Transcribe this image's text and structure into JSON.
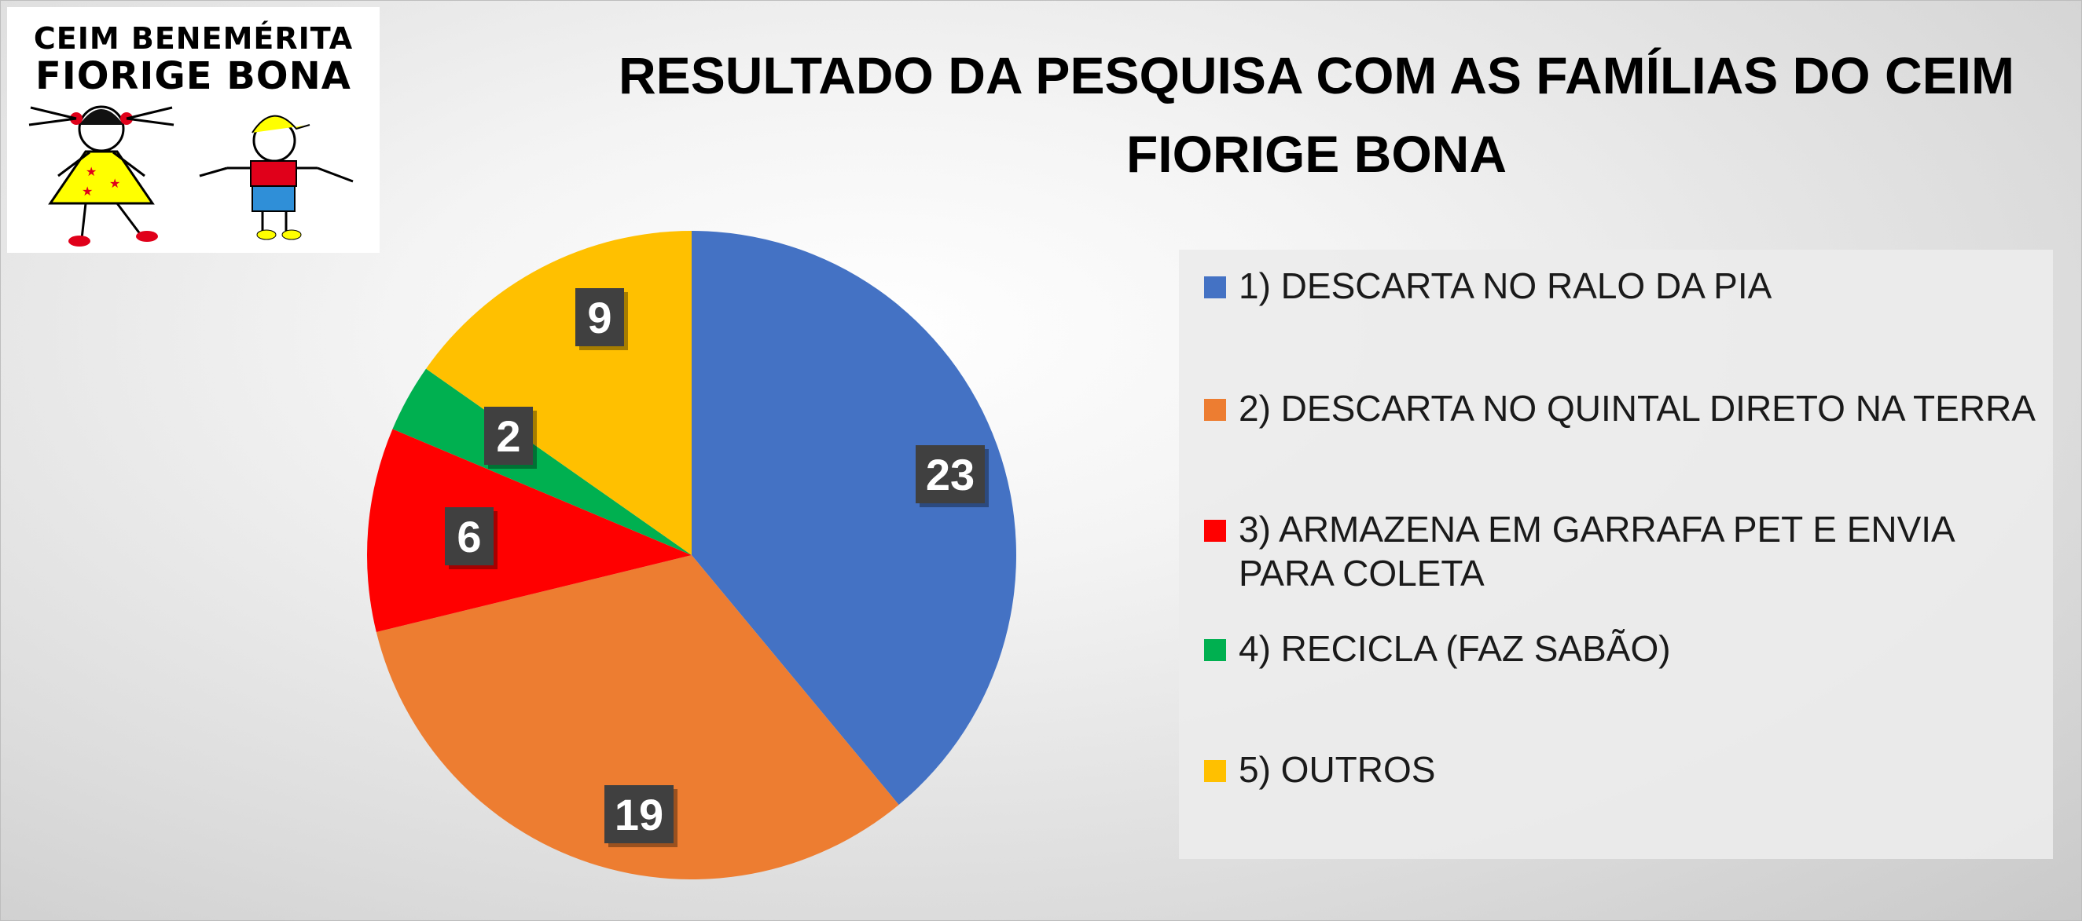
{
  "logo": {
    "line1": "CEIM BENEMÉRITA",
    "line2": "FIORIGE BONA"
  },
  "chart_data": {
    "type": "pie",
    "title_lines": [
      "RESULTADO DA PESQUISA COM AS FAMÍLIAS DO CEIM",
      "FIORIGE BONA"
    ],
    "categories": [
      "1) DESCARTA NO RALO DA PIA",
      "2) DESCARTA NO QUINTAL DIRETO NA TERRA",
      "3) ARMAZENA EM GARRAFA PET E ENVIA PARA COLETA",
      "4) RECICLA (FAZ SABÃO)",
      "5) OUTROS"
    ],
    "legend_lines": [
      [
        "1) DESCARTA NO RALO DA PIA"
      ],
      [
        "2) DESCARTA NO QUINTAL DIRETO NA TERRA"
      ],
      [
        "3) ARMAZENA EM GARRAFA PET E ENVIA",
        "PARA COLETA"
      ],
      [
        "4) RECICLA (FAZ SABÃO)"
      ],
      [
        "5) OUTROS"
      ]
    ],
    "values": [
      23,
      19,
      6,
      2,
      9
    ],
    "data_labels": [
      "23",
      "19",
      "6",
      "2",
      "9"
    ],
    "colors": [
      "#4472C4",
      "#ED7D31",
      "#FF0000",
      "#00B050",
      "#FFC000"
    ],
    "legend_position": "right",
    "start_angle": "12 o'clock, clockwise"
  }
}
